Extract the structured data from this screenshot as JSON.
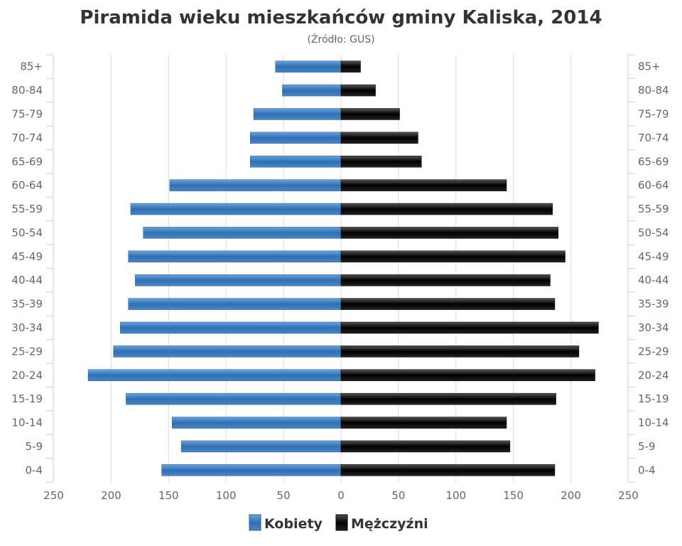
{
  "chart_data": {
    "type": "bar",
    "orientation": "horizontal-pyramid",
    "title": "Piramida wieku mieszkańców gminy Kaliska, 2014",
    "subtitle": "(Źródło: GUS)",
    "categories": [
      "85+",
      "80-84",
      "75-79",
      "70-74",
      "65-69",
      "60-64",
      "55-59",
      "50-54",
      "45-49",
      "40-44",
      "35-39",
      "30-34",
      "25-29",
      "20-24",
      "15-19",
      "10-14",
      "5-9",
      "0-4"
    ],
    "series": [
      {
        "name": "Kobiety",
        "color": "#4a86c5",
        "side": "left",
        "values": [
          57,
          51,
          76,
          79,
          79,
          149,
          183,
          172,
          185,
          179,
          185,
          192,
          198,
          220,
          187,
          147,
          139,
          156
        ]
      },
      {
        "name": "Mężczyźni",
        "color": "#1a1a1a",
        "side": "right",
        "values": [
          17,
          30,
          51,
          67,
          70,
          144,
          184,
          189,
          195,
          182,
          186,
          224,
          207,
          221,
          187,
          144,
          147,
          186
        ]
      }
    ],
    "xaxis": {
      "range": [
        -250,
        250
      ],
      "ticks": [
        -250,
        -200,
        -150,
        -100,
        -50,
        0,
        50,
        100,
        150,
        200,
        250
      ],
      "tick_labels": [
        "250",
        "200",
        "150",
        "100",
        "50",
        "0",
        "50",
        "100",
        "150",
        "200",
        "250"
      ]
    },
    "grid": true,
    "legend": "bottom-center"
  }
}
